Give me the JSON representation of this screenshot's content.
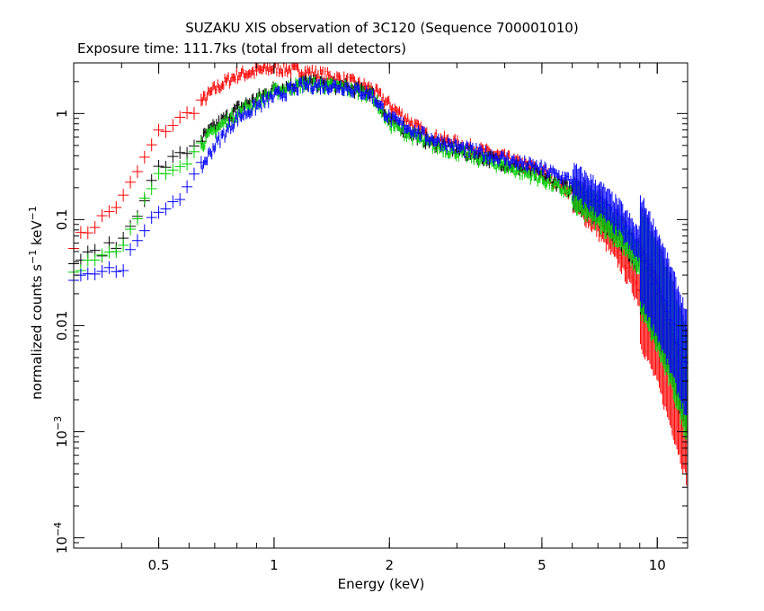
{
  "chart_data": {
    "type": "scatter",
    "title": "SUZAKU XIS observation of 3C120 (Sequence 700001010)",
    "subtitle": "Exposure time: 111.7ks (total from all detectors)",
    "xlabel": "Energy (keV)",
    "ylabel": "normalized counts s",
    "ylabel_sup1": "−1",
    "ylabel_mid": " keV",
    "ylabel_sup2": "−1",
    "x_scale": "log",
    "y_scale": "log",
    "xlim": [
      0.3,
      12
    ],
    "ylim": [
      8e-05,
      3.0
    ],
    "grid": false,
    "x_ticks": [
      {
        "value": 0.5,
        "label": "0.5"
      },
      {
        "value": 1,
        "label": "1"
      },
      {
        "value": 2,
        "label": "2"
      },
      {
        "value": 5,
        "label": "5"
      },
      {
        "value": 10,
        "label": "10"
      }
    ],
    "y_ticks": [
      {
        "value": 1,
        "label": "1"
      },
      {
        "value": 0.1,
        "label": "0.1"
      },
      {
        "value": 0.01,
        "label": "0.01"
      },
      {
        "value": 0.001,
        "label": "10",
        "sup": "−3"
      },
      {
        "value": 0.0001,
        "label": "10",
        "sup": "−4"
      }
    ],
    "series": [
      {
        "color": "#ff0000",
        "x": [
          0.3,
          0.4,
          0.5,
          0.6,
          0.7,
          0.8,
          1.0,
          1.2,
          1.5,
          1.8,
          2.0,
          2.5,
          3.0,
          4.0,
          5.0,
          6.0,
          7.0,
          8.0,
          9.0,
          10.0,
          11.0,
          12.0
        ],
        "y": [
          0.06,
          0.15,
          0.65,
          1.0,
          1.7,
          2.3,
          2.7,
          2.5,
          2.1,
          1.7,
          1.2,
          0.62,
          0.52,
          0.38,
          0.28,
          0.18,
          0.1,
          0.05,
          0.022,
          0.009,
          0.003,
          0.001
        ]
      },
      {
        "color": "#000000",
        "x": [
          0.3,
          0.4,
          0.5,
          0.6,
          0.7,
          0.8,
          1.0,
          1.2,
          1.5,
          1.8,
          2.0,
          2.5,
          3.0,
          4.0,
          5.0,
          6.0,
          7.0,
          8.0,
          9.0,
          10.0,
          11.0,
          12.0
        ],
        "y": [
          0.04,
          0.06,
          0.3,
          0.45,
          0.75,
          1.1,
          1.7,
          1.95,
          1.8,
          1.55,
          0.85,
          0.55,
          0.45,
          0.34,
          0.26,
          0.19,
          0.13,
          0.08,
          0.045,
          0.02,
          0.008,
          0.003
        ]
      },
      {
        "color": "#00d000",
        "x": [
          0.3,
          0.4,
          0.5,
          0.6,
          0.7,
          0.8,
          1.0,
          1.2,
          1.5,
          1.8,
          2.0,
          2.5,
          3.0,
          4.0,
          5.0,
          6.0,
          7.0,
          8.0,
          9.0,
          10.0,
          11.0,
          12.0
        ],
        "y": [
          0.035,
          0.05,
          0.28,
          0.38,
          0.7,
          1.0,
          1.6,
          1.9,
          1.75,
          1.5,
          0.8,
          0.52,
          0.43,
          0.32,
          0.24,
          0.17,
          0.12,
          0.075,
          0.042,
          0.018,
          0.007,
          0.0025
        ]
      },
      {
        "color": "#0000ff",
        "x": [
          0.3,
          0.4,
          0.5,
          0.6,
          0.7,
          0.8,
          1.0,
          1.2,
          1.5,
          1.8,
          2.0,
          2.5,
          3.0,
          4.0,
          5.0,
          6.0,
          7.0,
          8.0,
          9.0,
          10.0,
          11.0,
          12.0
        ],
        "y": [
          0.03,
          0.035,
          0.12,
          0.2,
          0.5,
          0.9,
          1.45,
          1.85,
          1.8,
          1.5,
          0.9,
          0.6,
          0.48,
          0.37,
          0.3,
          0.23,
          0.16,
          0.1,
          0.055,
          0.025,
          0.01,
          0.004
        ]
      }
    ]
  }
}
